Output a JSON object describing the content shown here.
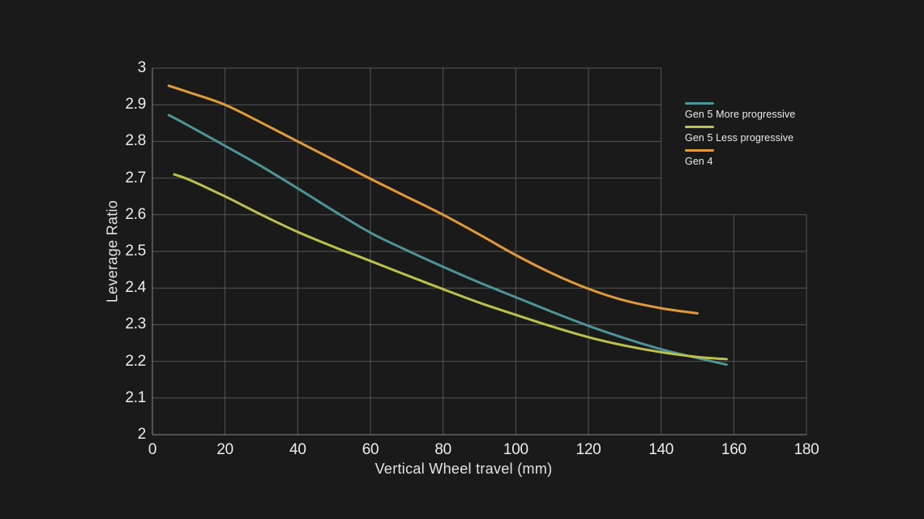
{
  "colors": {
    "background": "#1a1a1a",
    "grid": "#565656",
    "axis": "#8a8a8a",
    "tick_text": "#ececec",
    "title_text": "#e4e4e4"
  },
  "chart_data": {
    "type": "line",
    "title": "",
    "xlabel": "Vertical Wheel travel (mm)",
    "ylabel": "Leverage Ratio",
    "xlim": [
      0,
      180
    ],
    "ylim": [
      2,
      3
    ],
    "x_tick_labels": [
      "0",
      "20",
      "40",
      "60",
      "80",
      "100",
      "120",
      "140",
      "160",
      "180"
    ],
    "x_tick_values": [
      0,
      20,
      40,
      60,
      80,
      100,
      120,
      140,
      160,
      180
    ],
    "y_tick_labels": [
      "3",
      "2.9",
      "2.8",
      "2.7",
      "2.6",
      "2.5",
      "2.4",
      "2.3",
      "2.2",
      "2.1",
      "2"
    ],
    "y_tick_values": [
      3,
      2.9,
      2.8,
      2.7,
      2.6,
      2.5,
      2.4,
      2.3,
      2.2,
      2.1,
      2
    ],
    "grid": true,
    "grid_note": "gridlines above y=2.6 stop at x=140; vertical lines beyond x=140 start at y=2.6",
    "legend_position": "top-right-inside",
    "series": [
      {
        "name": "Gen 5 More progressive",
        "color": "#4d9397",
        "x": [
          4.5,
          10,
          20,
          30,
          40,
          50,
          60,
          70,
          80,
          90,
          100,
          110,
          120,
          130,
          140,
          150,
          158
        ],
        "y": [
          2.872,
          2.843,
          2.788,
          2.732,
          2.672,
          2.61,
          2.551,
          2.503,
          2.458,
          2.415,
          2.375,
          2.335,
          2.297,
          2.263,
          2.233,
          2.209,
          2.191
        ]
      },
      {
        "name": "Gen 5 Less progressive",
        "color": "#bcc14c",
        "x": [
          6,
          10,
          20,
          30,
          40,
          50,
          60,
          70,
          80,
          90,
          100,
          110,
          120,
          130,
          140,
          150,
          158
        ],
        "y": [
          2.71,
          2.696,
          2.65,
          2.6,
          2.553,
          2.512,
          2.474,
          2.435,
          2.397,
          2.36,
          2.327,
          2.295,
          2.266,
          2.243,
          2.225,
          2.212,
          2.206
        ]
      },
      {
        "name": "Gen 4",
        "color": "#e09a3c",
        "x": [
          4.5,
          10,
          20,
          30,
          40,
          50,
          60,
          70,
          80,
          90,
          100,
          110,
          120,
          130,
          140,
          150
        ],
        "y": [
          2.952,
          2.934,
          2.9,
          2.851,
          2.8,
          2.749,
          2.698,
          2.649,
          2.6,
          2.546,
          2.49,
          2.44,
          2.398,
          2.366,
          2.345,
          2.331
        ]
      }
    ]
  }
}
